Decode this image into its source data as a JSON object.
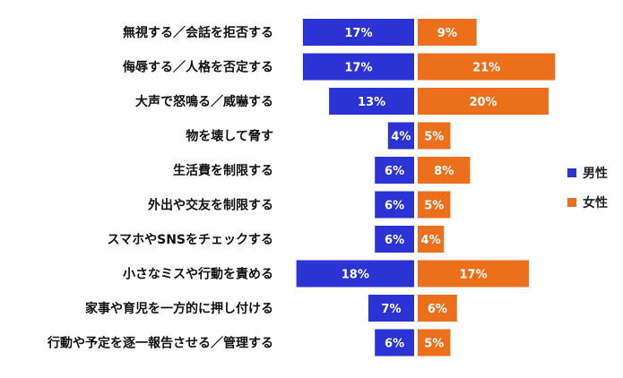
{
  "chart_data": {
    "type": "bar",
    "orientation": "horizontal-diverging",
    "categories": [
      "無視する／会話を拒否する",
      "侮辱する／人格を否定する",
      "大声で怒鳴る／威嚇する",
      "物を壊して脅す",
      "生活費を制限する",
      "外出や交友を制限する",
      "スマホやSNSをチェックする",
      "小さなミスや行動を責める",
      "家事や育児を一方的に押し付ける",
      "行動や予定を逐一報告させる／管理する"
    ],
    "series": [
      {
        "name": "男性",
        "color": "#2b33d4",
        "values": [
          17,
          17,
          13,
          4,
          6,
          6,
          6,
          18,
          7,
          6
        ]
      },
      {
        "name": "女性",
        "color": "#ec6f1c",
        "values": [
          9,
          21,
          20,
          5,
          8,
          5,
          4,
          17,
          6,
          5
        ]
      }
    ],
    "value_suffix": "%",
    "legend_position": "right",
    "grid": false
  }
}
